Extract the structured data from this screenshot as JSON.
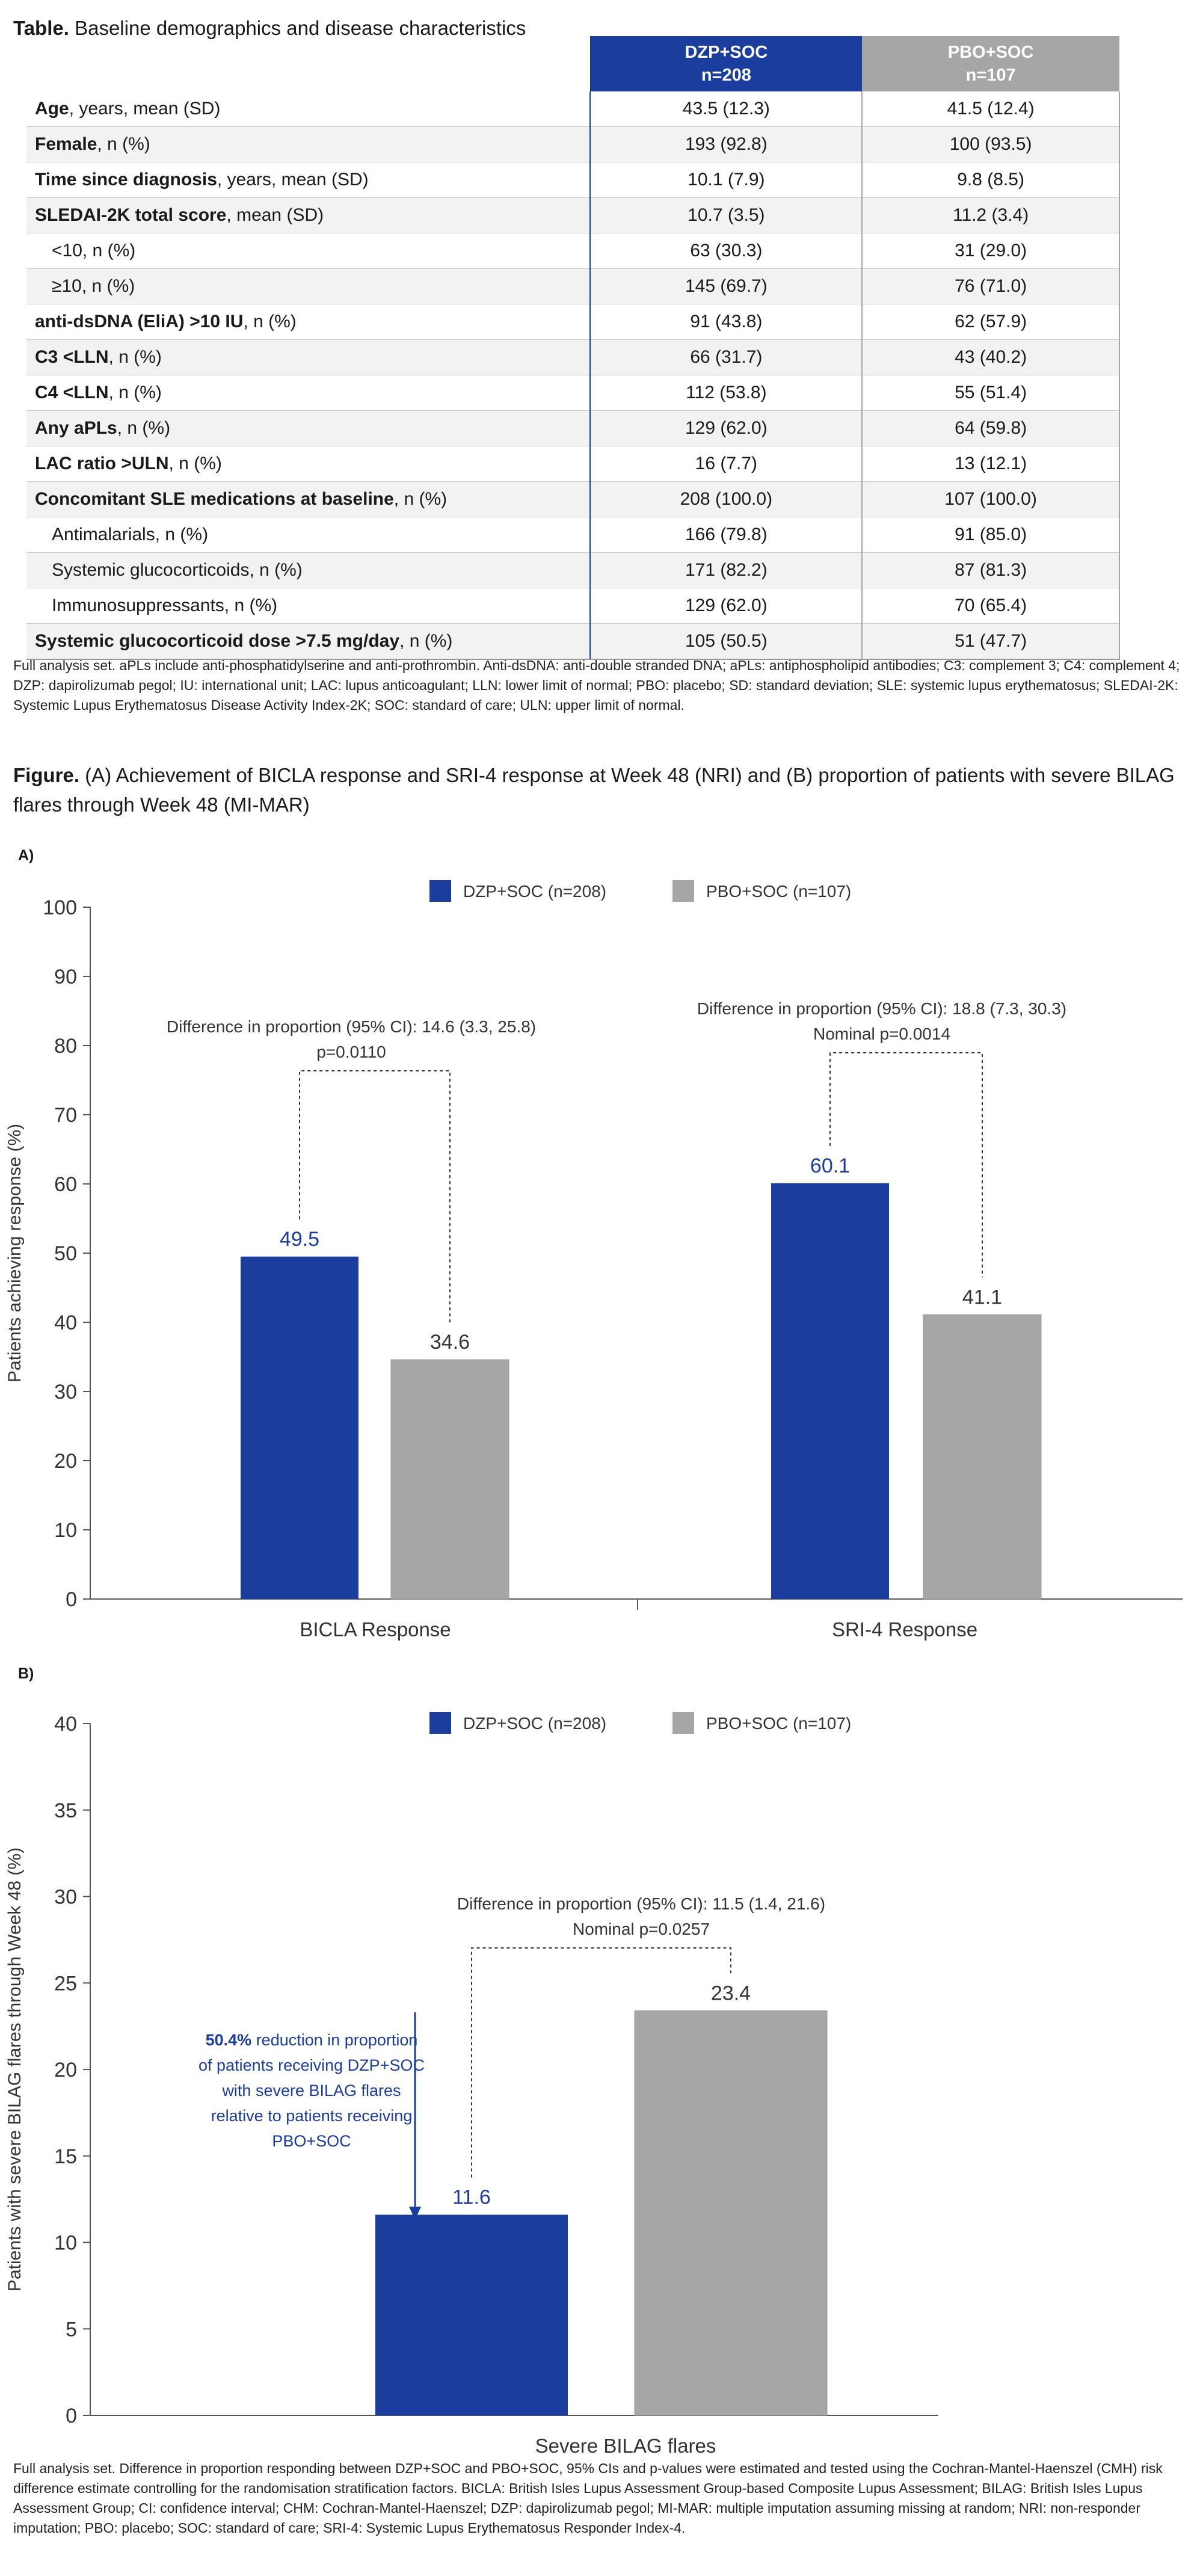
{
  "table": {
    "caption_bold": "Table.",
    "caption_text": "Baseline demographics and disease characteristics",
    "col_dzp_line1": "DZP+SOC",
    "col_dzp_line2": "n=208",
    "col_pbo_line1": "PBO+SOC",
    "col_pbo_line2": "n=107",
    "rows": [
      {
        "bold": "Age",
        "rest": ", years, mean (SD)",
        "dzp": "43.5 (12.3)",
        "pbo": "41.5 (12.4)"
      },
      {
        "bold": "Female",
        "rest": ", n (%)",
        "dzp": "193 (92.8)",
        "pbo": "100 (93.5)"
      },
      {
        "bold": "Time since diagnosis",
        "rest": ", years, mean (SD)",
        "dzp": "10.1 (7.9)",
        "pbo": "9.8 (8.5)"
      },
      {
        "bold": "SLEDAI-2K total score",
        "rest": ", mean (SD)",
        "dzp": "10.7 (3.5)",
        "pbo": "11.2 (3.4)"
      },
      {
        "bold": "",
        "rest": "<10, n (%)",
        "dzp": "63 (30.3)",
        "pbo": "31 (29.0)"
      },
      {
        "bold": "",
        "rest": "≥10, n (%)",
        "dzp": "145 (69.7)",
        "pbo": "76 (71.0)"
      },
      {
        "bold": "anti-dsDNA (EliA) >10 IU",
        "rest": ", n (%)",
        "dzp": "91 (43.8)",
        "pbo": "62 (57.9)"
      },
      {
        "bold": "C3 <LLN",
        "rest": ", n (%)",
        "dzp": "66 (31.7)",
        "pbo": "43 (40.2)"
      },
      {
        "bold": "C4 <LLN",
        "rest": ", n (%)",
        "dzp": "112 (53.8)",
        "pbo": "55 (51.4)"
      },
      {
        "bold": "Any aPLs",
        "rest": ", n (%)",
        "dzp": "129 (62.0)",
        "pbo": "64 (59.8)"
      },
      {
        "bold": "LAC ratio >ULN",
        "rest": ", n (%)",
        "dzp": "16 (7.7)",
        "pbo": "13 (12.1)"
      },
      {
        "bold": "Concomitant SLE medications at baseline",
        "rest": ", n (%)",
        "dzp": "208 (100.0)",
        "pbo": "107 (100.0)"
      },
      {
        "bold": "",
        "rest": "Antimalarials, n (%)",
        "dzp": "166 (79.8)",
        "pbo": "91 (85.0)"
      },
      {
        "bold": "",
        "rest": "Systemic glucocorticoids, n (%)",
        "dzp": "171 (82.2)",
        "pbo": "87 (81.3)"
      },
      {
        "bold": "",
        "rest": "Immunosuppressants, n (%)",
        "dzp": "129 (62.0)",
        "pbo": "70 (65.4)"
      },
      {
        "bold": "Systemic glucocorticoid dose >7.5 mg/day",
        "rest": ", n (%)",
        "dzp": "105 (50.5)",
        "pbo": "51 (47.7)"
      }
    ],
    "footnote": "Full analysis set. aPLs include anti-phosphatidylserine and anti-prothrombin. Anti-dsDNA: anti-double stranded DNA;  aPLs: antiphospholipid antibodies; C3: complement 3; C4: complement 4; DZP: dapirolizumab pegol; IU: international unit; LAC: lupus anticoagulant; LLN: lower limit of normal; PBO: placebo; SD: standard deviation; SLE: systemic lupus erythematosus; SLEDAI-2K: Systemic Lupus Erythematosus Disease Activity Index-2K; SOC: standard of care; ULN: upper limit of normal."
  },
  "figure": {
    "caption_bold": "Figure.",
    "caption_text": "(A) Achievement of BICLA response and SRI-4 response at Week 48 (NRI) and (B) proportion of patients with severe BILAG flares through Week 48 (MI-MAR)",
    "footnote": "Full analysis set. Difference in proportion responding between DZP+SOC and PBO+SOC, 95% CIs and p-values were estimated and tested using the Cochran-Mantel-Haenszel (CMH) risk difference estimate controlling for the randomisation stratification factors. BICLA: British Isles Lupus Assessment Group-based Composite Lupus Assessment; BILAG: British Isles Lupus Assessment Group; CI: confidence interval; CHM: Cochran-Mantel-Haenszel; DZP: dapirolizumab pegol; MI-MAR: multiple imputation assuming missing at random; NRI: non-responder imputation; PBO: placebo; SOC: standard of care; SRI-4: Systemic Lupus Erythematosus Responder Index-4."
  },
  "colors": {
    "dzp": "#1b3e9e",
    "pbo": "#a6a6a6",
    "annotation": "#1b3e9e"
  },
  "chart_data": [
    {
      "panel": "A)",
      "type": "bar",
      "ylabel": "Patients achieving response (%)",
      "xlabel": "",
      "ylim": [
        0,
        100
      ],
      "yticks": [
        0,
        10,
        20,
        30,
        40,
        50,
        60,
        70,
        80,
        90,
        100
      ],
      "categories": [
        "BICLA Response",
        "SRI-4 Response"
      ],
      "series": [
        {
          "name": "DZP+SOC (n=208)",
          "values": [
            49.5,
            60.1
          ],
          "labels": [
            "49.5",
            "60.1"
          ]
        },
        {
          "name": "PBO+SOC (n=107)",
          "values": [
            34.6,
            41.1
          ],
          "labels": [
            "34.6",
            "41.1"
          ]
        }
      ],
      "annotations": [
        {
          "line1": "Difference in proportion (95% CI): 14.6 (3.3, 25.8)",
          "line2": "p=0.0110"
        },
        {
          "line1": "Difference in proportion (95% CI): 18.8 (7.3, 30.3)",
          "line2": "Nominal p=0.0014"
        }
      ],
      "grid": false,
      "legend": "top-center"
    },
    {
      "panel": "B)",
      "type": "bar",
      "ylabel": "Patients with severe BILAG flares through Week 48 (%)",
      "xlabel": "",
      "ylim": [
        0,
        40
      ],
      "yticks": [
        0,
        5,
        10,
        15,
        20,
        25,
        30,
        35,
        40
      ],
      "categories": [
        "Severe BILAG flares"
      ],
      "series": [
        {
          "name": "DZP+SOC (n=208)",
          "values": [
            11.6
          ],
          "labels": [
            "11.6"
          ]
        },
        {
          "name": "PBO+SOC (n=107)",
          "values": [
            23.4
          ],
          "labels": [
            "23.4"
          ]
        }
      ],
      "annotations": [
        {
          "line1": "Difference in proportion (95% CI): 11.5 (1.4, 21.6)",
          "line2": "Nominal p=0.0257"
        }
      ],
      "callout": {
        "bold": "50.4%",
        "lines": [
          " reduction in proportion",
          "of patients receiving DZP+SOC",
          "with severe BILAG flares",
          "relative to patients receiving",
          "PBO+SOC"
        ]
      },
      "grid": false,
      "legend": "top-center"
    }
  ]
}
